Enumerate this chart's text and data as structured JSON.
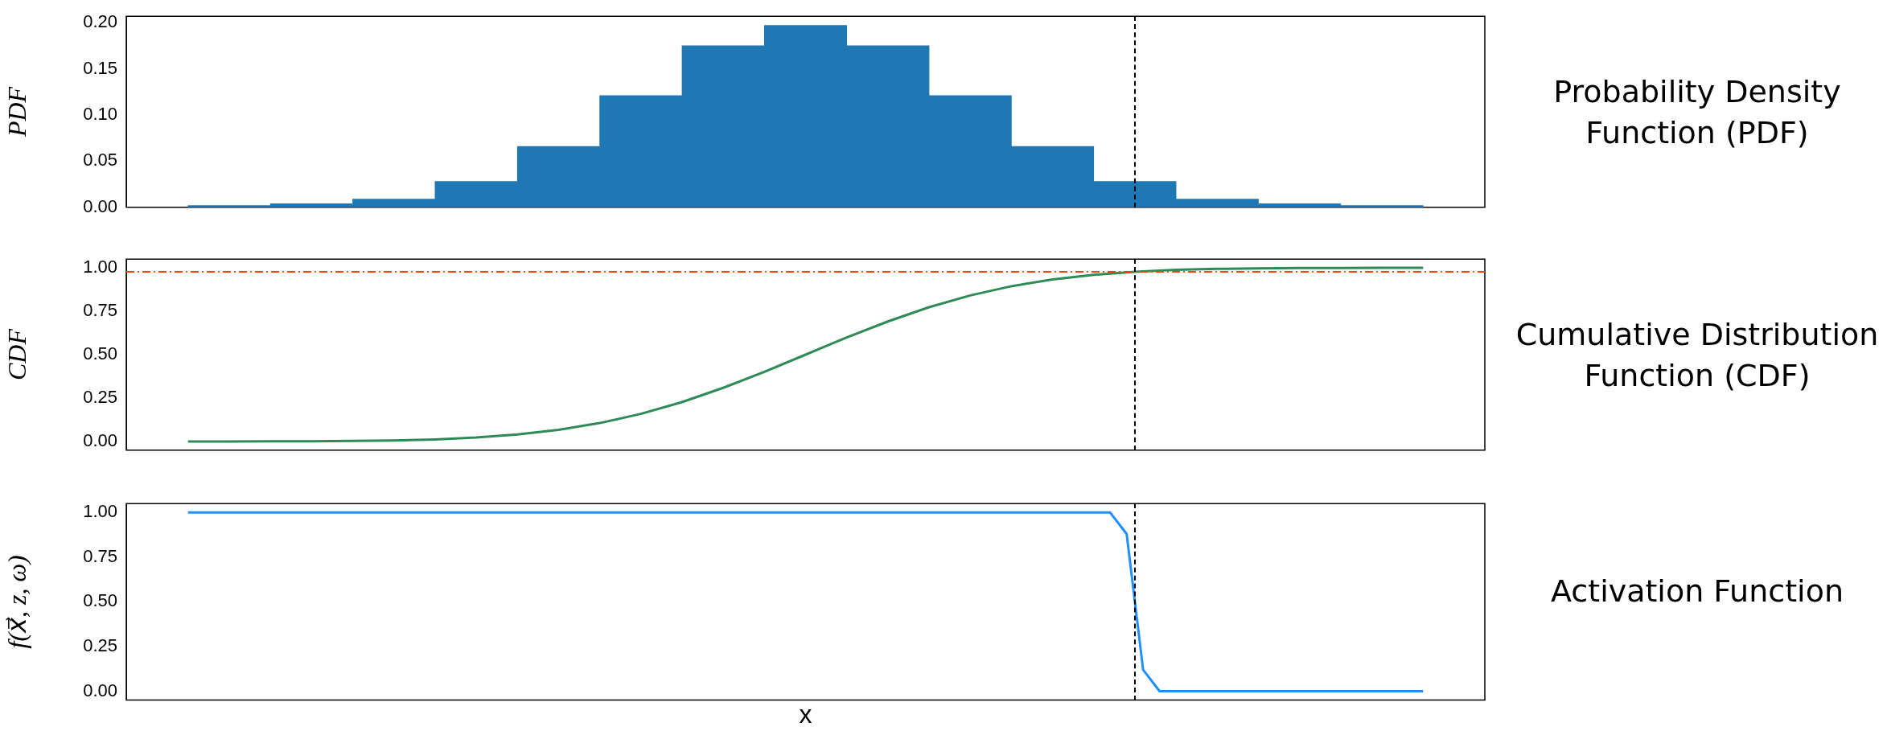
{
  "chart_data": [
    {
      "type": "bar",
      "ylabel": "PDF",
      "annotations": [
        "Probability Density Function (PDF)"
      ],
      "categories": [
        null,
        null,
        null,
        null,
        null,
        null,
        null,
        null,
        null,
        null,
        null,
        null,
        null,
        null,
        null
      ],
      "values": [
        0.002,
        0.004,
        0.009,
        0.028,
        0.066,
        0.121,
        0.175,
        0.197,
        0.175,
        0.121,
        0.066,
        0.028,
        0.009,
        0.004,
        0.002
      ],
      "color": "#1f77b4",
      "ylim": [
        0,
        0.207
      ],
      "yticks": [
        {
          "value": 0,
          "label": "0.00"
        },
        {
          "value": 0.05,
          "label": "0.05"
        },
        {
          "value": 0.1,
          "label": "0.10"
        },
        {
          "value": 0.15,
          "label": "0.15"
        },
        {
          "value": 0.2,
          "label": "0.20"
        }
      ],
      "tick_labels": "y"
    },
    {
      "type": "line",
      "ylabel": "CDF",
      "annotations": [
        "Cumulative Distribution Function (CDF)"
      ],
      "categories": [
        null,
        null,
        null,
        null,
        null,
        null,
        null,
        null,
        null,
        null,
        null,
        null,
        null,
        null,
        null,
        null,
        null,
        null,
        null,
        null,
        null,
        null,
        null,
        null,
        null,
        null,
        null,
        null,
        null,
        null,
        null
      ],
      "values": [
        0.0,
        0.0,
        0.001,
        0.001,
        0.003,
        0.006,
        0.012,
        0.023,
        0.04,
        0.067,
        0.106,
        0.159,
        0.227,
        0.309,
        0.401,
        0.5,
        0.599,
        0.691,
        0.773,
        0.841,
        0.894,
        0.933,
        0.96,
        0.977,
        0.988,
        0.994,
        0.997,
        0.999,
        0.999,
        1.0,
        1.0
      ],
      "color": "#2e8b57",
      "ylim": [
        -0.05,
        1.05
      ],
      "yticks": [
        {
          "value": 0,
          "label": "0.00"
        },
        {
          "value": 0.25,
          "label": "0.25"
        },
        {
          "value": 0.5,
          "label": "0.50"
        },
        {
          "value": 0.75,
          "label": "0.75"
        },
        {
          "value": 1,
          "label": "1.00"
        }
      ],
      "tick_labels": "y",
      "ref_lines": [
        {
          "axis": "y",
          "value": 0.977,
          "color": "#ff4500",
          "line_style": "dashdot"
        }
      ]
    },
    {
      "type": "line",
      "ylabel": "f(x⃗, z, ω)",
      "xlabel": "x",
      "annotations": [
        "Activation Function"
      ],
      "categories": [
        null,
        null,
        null,
        null,
        null,
        null,
        null,
        null,
        null,
        null,
        null,
        null,
        null,
        null,
        null,
        null,
        null,
        null,
        null,
        null,
        null,
        null,
        null,
        null,
        null,
        null,
        null,
        null,
        null,
        null,
        null,
        null,
        null,
        null,
        null,
        null,
        null,
        null,
        null,
        null,
        null,
        null,
        null,
        null,
        null,
        null,
        null,
        null,
        null,
        null,
        null,
        null,
        null,
        null,
        null,
        null,
        null,
        null,
        null,
        null,
        null,
        null,
        null,
        null,
        null,
        null,
        null,
        null,
        null,
        null,
        null,
        null,
        null,
        null,
        null,
        null
      ],
      "values": [
        1,
        1,
        1,
        1,
        1,
        1,
        1,
        1,
        1,
        1,
        1,
        1,
        1,
        1,
        1,
        1,
        1,
        1,
        1,
        1,
        1,
        1,
        1,
        1,
        1,
        1,
        1,
        1,
        1,
        1,
        1,
        1,
        1,
        1,
        1,
        1,
        1,
        1,
        1,
        1,
        1,
        1,
        1,
        1,
        1,
        1,
        1,
        1,
        1,
        1,
        1,
        1,
        1,
        1,
        1,
        1,
        1,
        0.88,
        0.12,
        0,
        0,
        0,
        0,
        0,
        0,
        0,
        0,
        0,
        0,
        0,
        0,
        0,
        0,
        0,
        0,
        0
      ],
      "color": "#1e90ff",
      "ylim": [
        -0.05,
        1.05
      ],
      "yticks": [
        {
          "value": 0,
          "label": "0.00"
        },
        {
          "value": 0.25,
          "label": "0.25"
        },
        {
          "value": 0.5,
          "label": "0.50"
        },
        {
          "value": 0.75,
          "label": "0.75"
        },
        {
          "value": 1,
          "label": "1.00"
        }
      ],
      "tick_labels": "y"
    }
  ]
}
